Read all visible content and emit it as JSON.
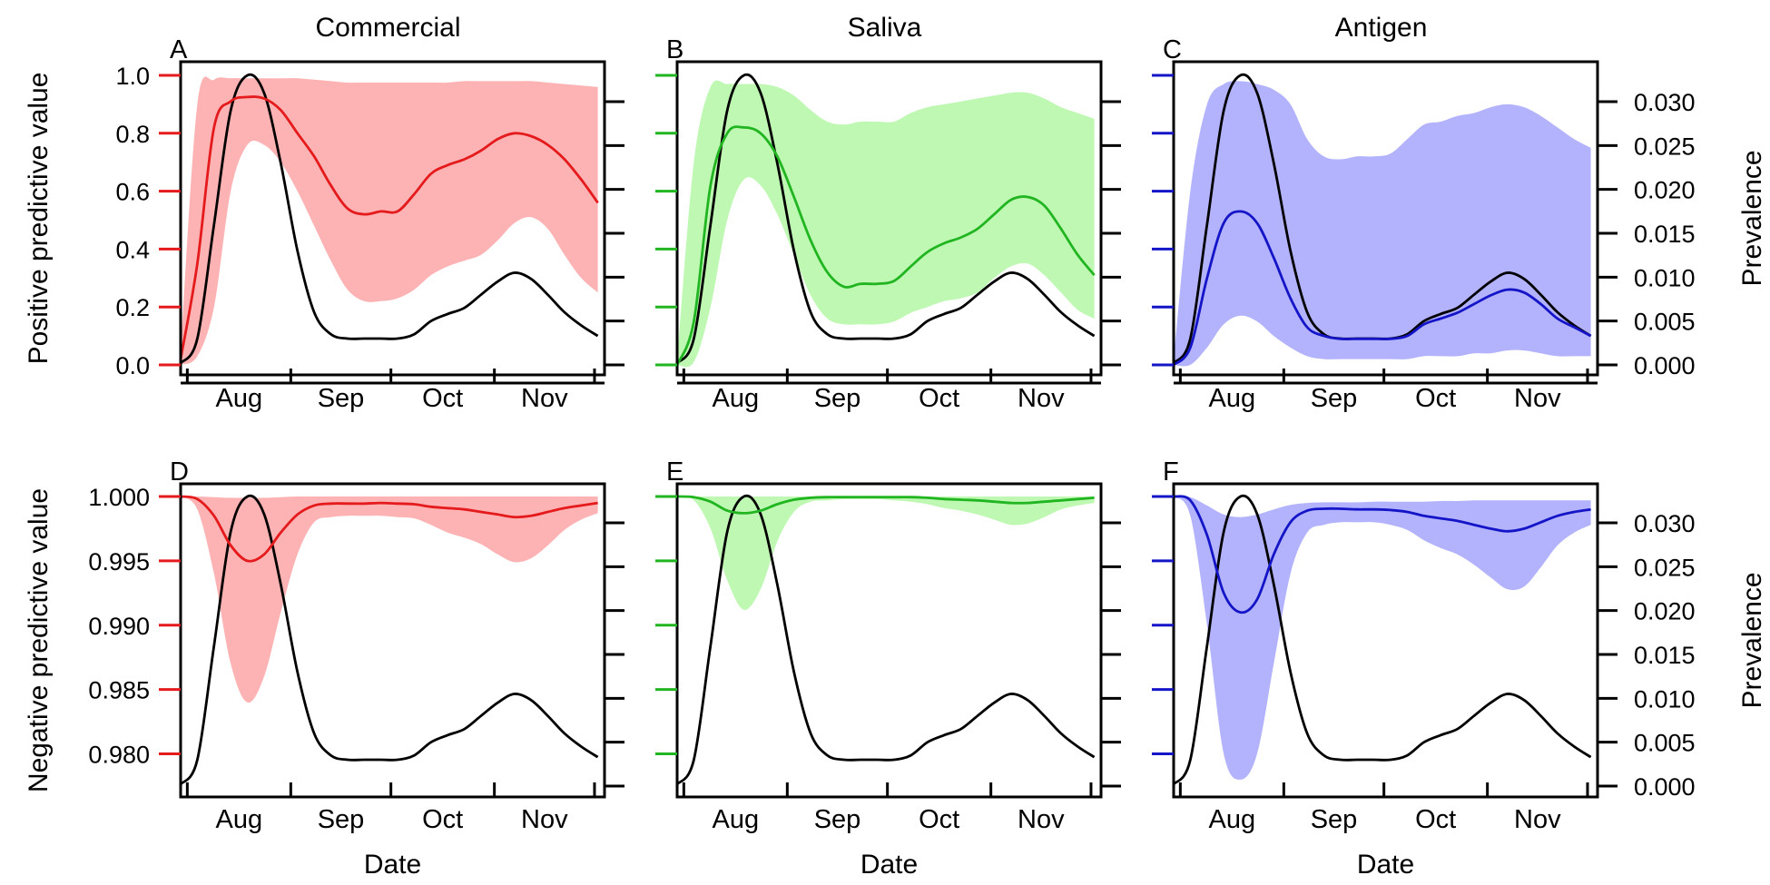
{
  "columns": [
    "Commercial",
    "Saliva",
    "Antigen"
  ],
  "panel_letters": [
    "A",
    "B",
    "C",
    "D",
    "E",
    "F"
  ],
  "row_ylabels": [
    "Positive predictive value",
    "Negative predictive value"
  ],
  "xlabel": "Date",
  "right_label": "Prevalence",
  "month_labels": [
    "Aug",
    "Sep",
    "Oct",
    "Nov"
  ],
  "colors": {
    "Commercial": "#e41a1c",
    "Saliva": "#21b521",
    "Antigen": "#1515c8",
    "prevalence": "#000000",
    "band_Commercial": "#fdb3b3",
    "band_Saliva": "#bff8b3",
    "band_Antigen": "#b3b3fd"
  },
  "chart_data": [
    {
      "panel": "A",
      "type": "line",
      "title": "Commercial",
      "xlabel": "",
      "ylabel": "Positive predictive value",
      "ylim": [
        0,
        1
      ],
      "yticks": [
        "0.0",
        "0.2",
        "0.4",
        "0.6",
        "0.8",
        "1.0"
      ],
      "right_ylim": [
        0,
        0.033
      ],
      "x": [
        "Jul 25",
        "Jul 30",
        "Aug 4",
        "Aug 9",
        "Aug 14",
        "Aug 19",
        "Aug 24",
        "Aug 29",
        "Sep 3",
        "Sep 8",
        "Sep 13",
        "Sep 18",
        "Sep 23",
        "Sep 28",
        "Oct 3",
        "Oct 8",
        "Oct 13",
        "Oct 18",
        "Oct 23",
        "Oct 28",
        "Nov 2",
        "Nov 7",
        "Nov 12",
        "Nov 17",
        "Nov 22",
        "Nov 27"
      ],
      "series": [
        {
          "role": "estimate",
          "values": [
            0.02,
            0.35,
            0.82,
            0.91,
            0.925,
            0.92,
            0.88,
            0.8,
            0.72,
            0.62,
            0.54,
            0.52,
            0.53,
            0.53,
            0.59,
            0.66,
            0.69,
            0.71,
            0.74,
            0.78,
            0.8,
            0.79,
            0.76,
            0.71,
            0.64,
            0.56
          ]
        },
        {
          "role": "lower",
          "values": [
            0.0,
            0.03,
            0.2,
            0.6,
            0.76,
            0.76,
            0.7,
            0.6,
            0.48,
            0.36,
            0.26,
            0.22,
            0.22,
            0.23,
            0.26,
            0.31,
            0.34,
            0.36,
            0.38,
            0.43,
            0.49,
            0.51,
            0.47,
            0.38,
            0.3,
            0.25
          ]
        },
        {
          "role": "upper",
          "values": [
            0.05,
            0.9,
            0.985,
            0.99,
            0.99,
            0.99,
            0.99,
            0.99,
            0.985,
            0.98,
            0.975,
            0.975,
            0.975,
            0.975,
            0.975,
            0.975,
            0.975,
            0.98,
            0.98,
            0.98,
            0.98,
            0.98,
            0.975,
            0.97,
            0.965,
            0.96
          ]
        },
        {
          "role": "prevalence",
          "axis": "right",
          "values": [
            0.0002,
            0.003,
            0.016,
            0.029,
            0.033,
            0.031,
            0.023,
            0.013,
            0.006,
            0.0035,
            0.003,
            0.003,
            0.003,
            0.003,
            0.0035,
            0.005,
            0.0058,
            0.0065,
            0.008,
            0.0095,
            0.0105,
            0.0098,
            0.008,
            0.006,
            0.0045,
            0.0033
          ]
        }
      ]
    },
    {
      "panel": "B",
      "type": "line",
      "title": "Saliva",
      "xlabel": "",
      "ylabel": "",
      "ylim": [
        0,
        1
      ],
      "right_ylim": [
        0,
        0.033
      ],
      "x": [
        "Jul 25",
        "Jul 30",
        "Aug 4",
        "Aug 9",
        "Aug 14",
        "Aug 19",
        "Aug 24",
        "Aug 29",
        "Sep 3",
        "Sep 8",
        "Sep 13",
        "Sep 18",
        "Sep 23",
        "Sep 28",
        "Oct 3",
        "Oct 8",
        "Oct 13",
        "Oct 18",
        "Oct 23",
        "Oct 28",
        "Nov 2",
        "Nov 7",
        "Nov 12",
        "Nov 17",
        "Nov 22",
        "Nov 27"
      ],
      "series": [
        {
          "role": "estimate",
          "values": [
            0.0,
            0.15,
            0.62,
            0.8,
            0.82,
            0.8,
            0.72,
            0.58,
            0.43,
            0.32,
            0.27,
            0.28,
            0.28,
            0.29,
            0.34,
            0.39,
            0.42,
            0.44,
            0.47,
            0.52,
            0.57,
            0.58,
            0.55,
            0.47,
            0.38,
            0.31
          ]
        },
        {
          "role": "lower",
          "values": [
            0.0,
            0.01,
            0.2,
            0.5,
            0.64,
            0.62,
            0.52,
            0.38,
            0.24,
            0.16,
            0.14,
            0.14,
            0.14,
            0.15,
            0.18,
            0.2,
            0.22,
            0.23,
            0.25,
            0.3,
            0.34,
            0.35,
            0.31,
            0.25,
            0.19,
            0.16
          ]
        },
        {
          "role": "upper",
          "values": [
            0.02,
            0.7,
            0.96,
            0.97,
            0.97,
            0.97,
            0.96,
            0.93,
            0.88,
            0.84,
            0.83,
            0.84,
            0.84,
            0.84,
            0.87,
            0.89,
            0.9,
            0.91,
            0.92,
            0.93,
            0.94,
            0.94,
            0.92,
            0.89,
            0.87,
            0.85
          ]
        },
        {
          "role": "prevalence",
          "axis": "right",
          "values": [
            0.0002,
            0.003,
            0.016,
            0.029,
            0.033,
            0.031,
            0.023,
            0.013,
            0.006,
            0.0035,
            0.003,
            0.003,
            0.003,
            0.003,
            0.0035,
            0.005,
            0.0058,
            0.0065,
            0.008,
            0.0095,
            0.0105,
            0.0098,
            0.008,
            0.006,
            0.0045,
            0.0033
          ]
        }
      ]
    },
    {
      "panel": "C",
      "type": "line",
      "title": "Antigen",
      "xlabel": "",
      "ylabel": "Prevalence",
      "ylim": [
        0,
        1
      ],
      "right_ylim": [
        0,
        0.033
      ],
      "right_yticks": [
        "0.000",
        "0.005",
        "0.010",
        "0.015",
        "0.020",
        "0.025",
        "0.030"
      ],
      "x": [
        "Jul 25",
        "Jul 30",
        "Aug 4",
        "Aug 9",
        "Aug 14",
        "Aug 19",
        "Aug 24",
        "Aug 29",
        "Sep 3",
        "Sep 8",
        "Sep 13",
        "Sep 18",
        "Sep 23",
        "Sep 28",
        "Oct 3",
        "Oct 8",
        "Oct 13",
        "Oct 18",
        "Oct 23",
        "Oct 28",
        "Nov 2",
        "Nov 7",
        "Nov 12",
        "Nov 17",
        "Nov 22",
        "Nov 27"
      ],
      "series": [
        {
          "role": "estimate",
          "values": [
            0.0,
            0.06,
            0.3,
            0.49,
            0.53,
            0.49,
            0.37,
            0.23,
            0.13,
            0.1,
            0.09,
            0.09,
            0.09,
            0.09,
            0.1,
            0.14,
            0.16,
            0.18,
            0.21,
            0.24,
            0.26,
            0.25,
            0.21,
            0.16,
            0.13,
            0.1
          ]
        },
        {
          "role": "lower",
          "values": [
            0.0,
            0.0,
            0.06,
            0.14,
            0.17,
            0.15,
            0.1,
            0.06,
            0.03,
            0.02,
            0.02,
            0.02,
            0.02,
            0.02,
            0.02,
            0.03,
            0.03,
            0.03,
            0.04,
            0.04,
            0.05,
            0.05,
            0.04,
            0.03,
            0.03,
            0.03
          ]
        },
        {
          "role": "upper",
          "values": [
            0.02,
            0.6,
            0.9,
            0.97,
            0.98,
            0.97,
            0.95,
            0.9,
            0.78,
            0.72,
            0.71,
            0.72,
            0.72,
            0.73,
            0.78,
            0.83,
            0.84,
            0.86,
            0.87,
            0.89,
            0.9,
            0.89,
            0.86,
            0.82,
            0.78,
            0.75
          ]
        },
        {
          "role": "prevalence",
          "axis": "right",
          "values": [
            0.0002,
            0.003,
            0.016,
            0.029,
            0.033,
            0.031,
            0.023,
            0.013,
            0.006,
            0.0035,
            0.003,
            0.003,
            0.003,
            0.003,
            0.0035,
            0.005,
            0.0058,
            0.0065,
            0.008,
            0.0095,
            0.0105,
            0.0098,
            0.008,
            0.006,
            0.0045,
            0.0033
          ]
        }
      ]
    },
    {
      "panel": "D",
      "type": "line",
      "title": "",
      "xlabel": "Date",
      "ylabel": "Negative predictive value",
      "ylim": [
        0.9775,
        1.0
      ],
      "yticks": [
        "0.980",
        "0.985",
        "0.990",
        "0.995",
        "1.000"
      ],
      "right_ylim": [
        0,
        0.033
      ],
      "x": [
        "Jul 25",
        "Jul 30",
        "Aug 4",
        "Aug 9",
        "Aug 14",
        "Aug 19",
        "Aug 24",
        "Aug 29",
        "Sep 3",
        "Sep 8",
        "Sep 13",
        "Sep 18",
        "Sep 23",
        "Sep 28",
        "Oct 3",
        "Oct 8",
        "Oct 13",
        "Oct 18",
        "Oct 23",
        "Oct 28",
        "Nov 2",
        "Nov 7",
        "Nov 12",
        "Nov 17",
        "Nov 22",
        "Nov 27"
      ],
      "series": [
        {
          "role": "estimate",
          "values": [
            1.0,
            0.9998,
            0.9985,
            0.9962,
            0.995,
            0.9955,
            0.9972,
            0.9986,
            0.9993,
            0.99945,
            0.99945,
            0.99945,
            0.9995,
            0.99945,
            0.9994,
            0.9992,
            0.9991,
            0.999,
            0.9988,
            0.9986,
            0.9984,
            0.9985,
            0.9988,
            0.9991,
            0.9993,
            0.9995
          ]
        },
        {
          "role": "lower",
          "values": [
            1.0,
            0.999,
            0.994,
            0.987,
            0.984,
            0.986,
            0.991,
            0.9955,
            0.998,
            0.9984,
            0.9985,
            0.9985,
            0.9985,
            0.9984,
            0.9983,
            0.9978,
            0.9972,
            0.9968,
            0.9963,
            0.9955,
            0.9949,
            0.9952,
            0.9962,
            0.9974,
            0.9982,
            0.9987
          ]
        },
        {
          "role": "upper",
          "values": [
            1.0,
            1.0,
            0.99995,
            0.9999,
            0.9999,
            0.9999,
            0.99995,
            1.0,
            1.0,
            1.0,
            1.0,
            1.0,
            1.0,
            1.0,
            1.0,
            1.0,
            1.0,
            1.0,
            1.0,
            1.0,
            1.0,
            1.0,
            1.0,
            1.0,
            1.0,
            1.0
          ]
        },
        {
          "role": "prevalence",
          "axis": "right",
          "values": [
            0.0002,
            0.003,
            0.016,
            0.029,
            0.033,
            0.031,
            0.023,
            0.013,
            0.006,
            0.0035,
            0.003,
            0.003,
            0.003,
            0.003,
            0.0035,
            0.005,
            0.0058,
            0.0065,
            0.008,
            0.0095,
            0.0105,
            0.0098,
            0.008,
            0.006,
            0.0045,
            0.0033
          ]
        }
      ]
    },
    {
      "panel": "E",
      "type": "line",
      "title": "",
      "xlabel": "Date",
      "ylabel": "",
      "ylim": [
        0.9775,
        1.0
      ],
      "right_ylim": [
        0,
        0.033
      ],
      "x": [
        "Jul 25",
        "Jul 30",
        "Aug 4",
        "Aug 9",
        "Aug 14",
        "Aug 19",
        "Aug 24",
        "Aug 29",
        "Sep 3",
        "Sep 8",
        "Sep 13",
        "Sep 18",
        "Sep 23",
        "Sep 28",
        "Oct 3",
        "Oct 8",
        "Oct 13",
        "Oct 18",
        "Oct 23",
        "Oct 28",
        "Nov 2",
        "Nov 7",
        "Nov 12",
        "Nov 17",
        "Nov 22",
        "Nov 27"
      ],
      "series": [
        {
          "role": "estimate",
          "values": [
            1.0,
            0.99995,
            0.9996,
            0.9989,
            0.9987,
            0.9989,
            0.9994,
            0.99975,
            0.9999,
            0.99995,
            0.99995,
            0.99995,
            0.99995,
            0.99995,
            0.99995,
            0.9999,
            0.9998,
            0.99975,
            0.9997,
            0.9996,
            0.9995,
            0.9995,
            0.9996,
            0.9997,
            0.9998,
            0.9999
          ]
        },
        {
          "role": "lower",
          "values": [
            1.0,
            0.9997,
            0.9975,
            0.9935,
            0.9912,
            0.9928,
            0.9965,
            0.9988,
            0.9996,
            0.9997,
            0.9998,
            0.9998,
            0.9998,
            0.9997,
            0.9996,
            0.9994,
            0.9991,
            0.9989,
            0.9986,
            0.9982,
            0.9978,
            0.9979,
            0.9984,
            0.999,
            0.9993,
            0.9995
          ]
        },
        {
          "role": "upper",
          "values": [
            1.0,
            1.0,
            1.0,
            1.0,
            1.0,
            1.0,
            1.0,
            1.0,
            1.0,
            1.0,
            1.0,
            1.0,
            1.0,
            1.0,
            1.0,
            1.0,
            1.0,
            1.0,
            1.0,
            1.0,
            1.0,
            1.0,
            1.0,
            1.0,
            1.0,
            1.0
          ]
        },
        {
          "role": "prevalence",
          "axis": "right",
          "values": [
            0.0002,
            0.003,
            0.016,
            0.029,
            0.033,
            0.031,
            0.023,
            0.013,
            0.006,
            0.0035,
            0.003,
            0.003,
            0.003,
            0.003,
            0.0035,
            0.005,
            0.0058,
            0.0065,
            0.008,
            0.0095,
            0.0105,
            0.0098,
            0.008,
            0.006,
            0.0045,
            0.0033
          ]
        }
      ]
    },
    {
      "panel": "F",
      "type": "line",
      "title": "",
      "xlabel": "Date",
      "ylabel": "Prevalence",
      "ylim": [
        0.9775,
        1.0
      ],
      "right_ylim": [
        0,
        0.033
      ],
      "right_yticks": [
        "0.000",
        "0.005",
        "0.010",
        "0.015",
        "0.020",
        "0.025",
        "0.030"
      ],
      "x": [
        "Jul 25",
        "Jul 30",
        "Aug 4",
        "Aug 9",
        "Aug 14",
        "Aug 19",
        "Aug 24",
        "Aug 29",
        "Sep 3",
        "Sep 8",
        "Sep 13",
        "Sep 18",
        "Sep 23",
        "Sep 28",
        "Oct 3",
        "Oct 8",
        "Oct 13",
        "Oct 18",
        "Oct 23",
        "Oct 28",
        "Nov 2",
        "Nov 7",
        "Nov 12",
        "Nov 17",
        "Nov 22",
        "Nov 27"
      ],
      "series": [
        {
          "role": "estimate",
          "values": [
            1.0,
            0.9997,
            0.997,
            0.9925,
            0.991,
            0.992,
            0.9955,
            0.998,
            0.9989,
            0.99905,
            0.99905,
            0.999,
            0.999,
            0.99895,
            0.9988,
            0.9985,
            0.9983,
            0.9981,
            0.9978,
            0.9975,
            0.9973,
            0.9975,
            0.998,
            0.9985,
            0.9988,
            0.999
          ]
        },
        {
          "role": "lower",
          "values": [
            1.0,
            0.9985,
            0.99,
            0.98,
            0.978,
            0.98,
            0.987,
            0.994,
            0.9972,
            0.9978,
            0.998,
            0.998,
            0.998,
            0.9978,
            0.9974,
            0.9966,
            0.996,
            0.9955,
            0.9947,
            0.9937,
            0.9928,
            0.993,
            0.9945,
            0.9962,
            0.9972,
            0.9978
          ]
        },
        {
          "role": "upper",
          "values": [
            1.0,
            0.99995,
            0.9993,
            0.9986,
            0.9984,
            0.9986,
            0.999,
            0.99935,
            0.9995,
            0.99955,
            0.99955,
            0.99955,
            0.9996,
            0.9996,
            0.9996,
            0.9996,
            0.99965,
            0.99965,
            0.9997,
            0.9997,
            0.9997,
            0.9997,
            0.9997,
            0.9997,
            0.9997,
            0.9997
          ]
        },
        {
          "role": "prevalence",
          "axis": "right",
          "values": [
            0.0002,
            0.003,
            0.016,
            0.029,
            0.033,
            0.031,
            0.023,
            0.013,
            0.006,
            0.0035,
            0.003,
            0.003,
            0.003,
            0.003,
            0.0035,
            0.005,
            0.0058,
            0.0065,
            0.008,
            0.0095,
            0.0105,
            0.0098,
            0.008,
            0.006,
            0.0045,
            0.0033
          ]
        }
      ]
    }
  ]
}
